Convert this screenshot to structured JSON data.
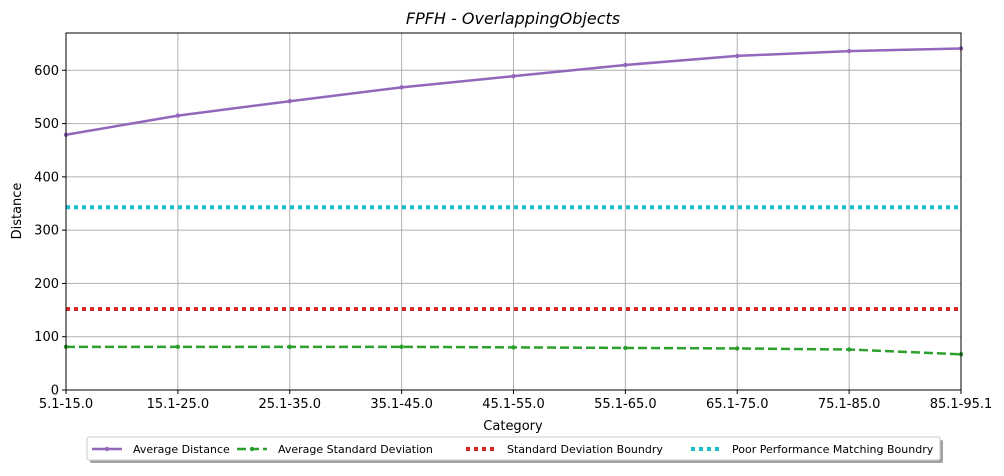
{
  "chart_data": {
    "type": "line",
    "title": "FPFH - OverlappingObjects",
    "xlabel": "Category",
    "ylabel": "Distance",
    "categories": [
      "5.1-15.0",
      "15.1-25.0",
      "25.1-35.0",
      "35.1-45.0",
      "45.1-55.0",
      "55.1-65.0",
      "65.1-75.0",
      "75.1-85.0",
      "85.1-95.1"
    ],
    "yticks": [
      0,
      100,
      200,
      300,
      400,
      500,
      600
    ],
    "ylim": [
      0,
      670
    ],
    "grid": true,
    "legend_position": "bottom",
    "series": [
      {
        "name": "Average Distance",
        "color": "#9467bd",
        "style": "solid-marker",
        "values": [
          479,
          515,
          542,
          568,
          589,
          610,
          627,
          636,
          641
        ]
      },
      {
        "name": "Average Standard Deviation",
        "color": "#2ca02c",
        "style": "dashed",
        "values": [
          81,
          81,
          81,
          81,
          80,
          79,
          78,
          76,
          67
        ]
      },
      {
        "name": "Standard Deviation Boundry",
        "color": "#d62728",
        "style": "dotted",
        "values": [
          152,
          152,
          152,
          152,
          152,
          152,
          152,
          152,
          152
        ]
      },
      {
        "name": "Poor Performance Matching Boundry",
        "color": "#17becf",
        "style": "dotted",
        "values": [
          343,
          343,
          343,
          343,
          343,
          343,
          343,
          343,
          343
        ]
      }
    ]
  }
}
